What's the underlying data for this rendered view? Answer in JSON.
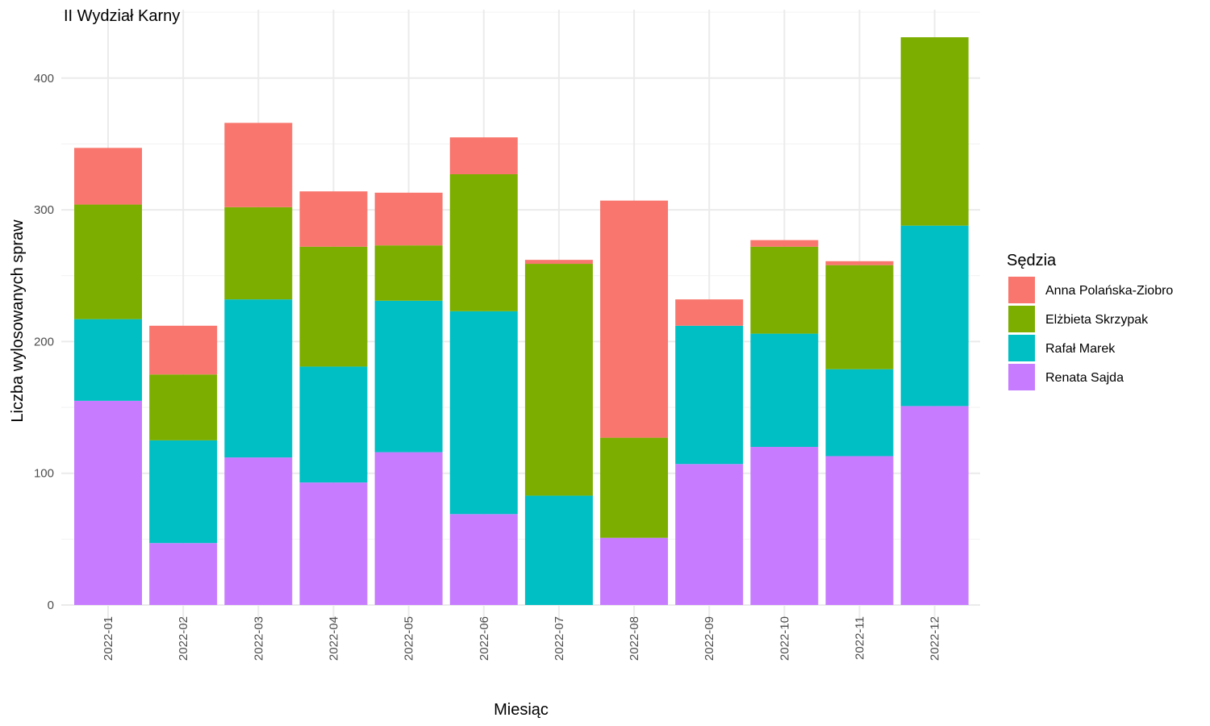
{
  "chart_data": {
    "type": "bar",
    "stacked": true,
    "title": "II Wydział Karny",
    "xlabel": "Miesiąc",
    "ylabel": "Liczba wylosowanych spraw",
    "ylim": [
      0,
      430
    ],
    "yticks": [
      0,
      100,
      200,
      300,
      400
    ],
    "grid": true,
    "legend_title": "Sędzia",
    "legend_position": "right",
    "categories": [
      "2022-01",
      "2022-02",
      "2022-03",
      "2022-04",
      "2022-05",
      "2022-06",
      "2022-07",
      "2022-08",
      "2022-09",
      "2022-10",
      "2022-11",
      "2022-12"
    ],
    "series": [
      {
        "name": "Anna Polańska-Ziobro",
        "color": "#F8766D",
        "values": [
          43,
          37,
          64,
          42,
          40,
          28,
          3,
          180,
          20,
          5,
          3,
          0
        ]
      },
      {
        "name": "Elżbieta Skrzypak",
        "color": "#7CAE00",
        "values": [
          87,
          50,
          70,
          91,
          42,
          104,
          176,
          76,
          0,
          66,
          79,
          143
        ]
      },
      {
        "name": "Rafał Marek",
        "color": "#00BFC4",
        "values": [
          62,
          78,
          120,
          88,
          115,
          154,
          83,
          0,
          105,
          86,
          66,
          137
        ]
      },
      {
        "name": "Renata Sajda",
        "color": "#C77CFF",
        "values": [
          155,
          47,
          112,
          93,
          116,
          69,
          0,
          51,
          107,
          120,
          113,
          151
        ]
      }
    ],
    "stack_order_bottom_to_top": [
      "Renata Sajda",
      "Rafał Marek",
      "Elżbieta Skrzypak",
      "Anna Polańska-Ziobro"
    ]
  }
}
